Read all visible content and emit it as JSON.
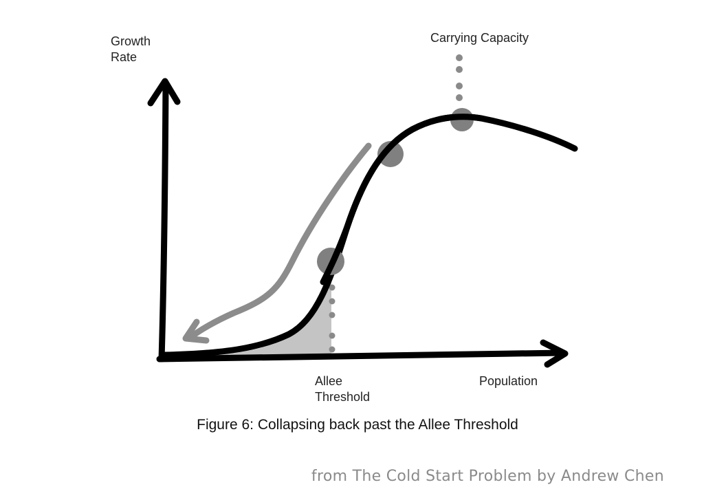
{
  "diagram": {
    "y_axis_label": "Growth\nRate",
    "x_axis_label": "Population",
    "carrying_capacity_label": "Carrying Capacity",
    "allee_threshold_label": "Allee\nThreshold",
    "colors": {
      "curve": "#000000",
      "collapse_arrow": "#8c8c8c",
      "markers": "#808080",
      "shaded_region": "#b0b0b0",
      "dotted_lines": "#8a8a8a"
    }
  },
  "caption": "Figure 6: Collapsing back past the Allee Threshold",
  "source": "from The Cold Start Problem by Andrew Chen"
}
